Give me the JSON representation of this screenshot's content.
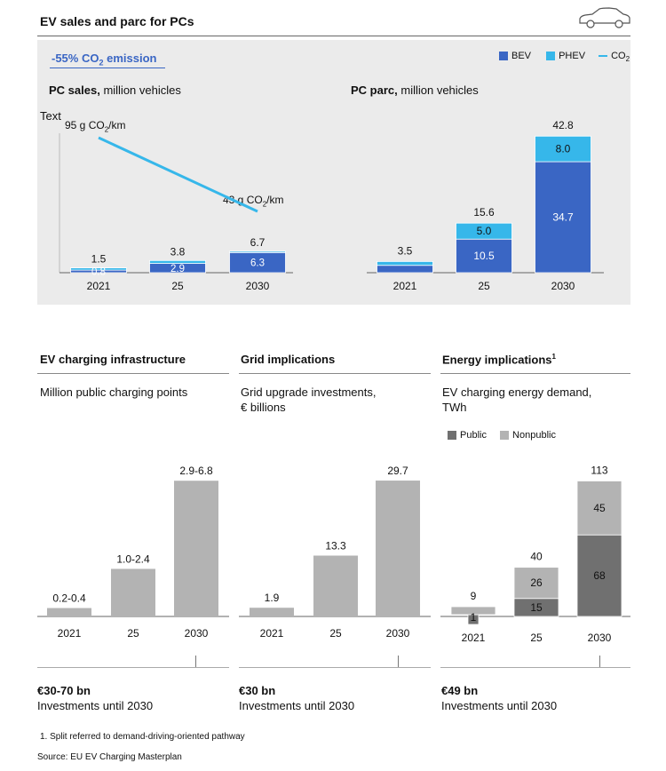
{
  "header": {
    "title": "EV sales and parc for PCs",
    "car_icon": "car-outline-icon"
  },
  "top": {
    "co2_badge_prefix": "-55% CO",
    "co2_badge_sub": "2",
    "co2_badge_suffix": " emission",
    "legend": [
      {
        "name": "BEV",
        "color": "#3a66c4",
        "kind": "square"
      },
      {
        "name": "PHEV",
        "color": "#36b7ea",
        "kind": "square"
      },
      {
        "name": "CO",
        "sub": "2",
        "color": "#36b7ea",
        "kind": "line"
      }
    ],
    "sales_title_bold": "PC sales,",
    "sales_title_rest": " million vehicles",
    "parc_title_bold": "PC parc,",
    "parc_title_rest": " million vehicles",
    "text_placeholder": "Text",
    "co2_start_prefix": "95 g CO",
    "co2_start_sub": "2",
    "co2_start_suffix": "/km",
    "co2_end_prefix": "43 g CO",
    "co2_end_sub": "2",
    "co2_end_suffix": "/km"
  },
  "bottom": {
    "charging": {
      "title": "EV charging infrastructure",
      "subtitle": "Million public charging points",
      "invest_value": "€30-70 bn",
      "invest_label": "Investments until 2030"
    },
    "grid": {
      "title": "Grid implications",
      "subtitle_1": "Grid upgrade investments,",
      "subtitle_2": "€ billions",
      "invest_value": "€30 bn",
      "invest_label": "Investments until 2030"
    },
    "energy": {
      "title": "Energy implications",
      "title_sup": "1",
      "subtitle_1": "EV charging energy demand,",
      "subtitle_2": "TWh",
      "legend": [
        {
          "name": "Public",
          "color": "#707070"
        },
        {
          "name": "Nonpublic",
          "color": "#b3b3b3"
        }
      ],
      "invest_value": "€49 bn",
      "invest_label": "Investments until 2030"
    }
  },
  "footnote": "1. Split referred to demand-driving-oriented pathway",
  "source": "Source: EU EV Charging Masterplan",
  "chart_data": [
    {
      "id": "pc_sales",
      "type": "bar",
      "stacked": true,
      "categories": [
        "2021",
        "25",
        "2030"
      ],
      "series": [
        {
          "name": "BEV",
          "values": [
            0.8,
            2.9,
            6.3
          ],
          "color": "#3a66c4"
        },
        {
          "name": "PHEV",
          "values": [
            0.7,
            0.9,
            0.4
          ],
          "color": "#36b7ea"
        }
      ],
      "totals": [
        1.5,
        3.8,
        6.7
      ],
      "bev_labels": [
        "0.8",
        "2.9",
        "6.3"
      ],
      "total_labels": [
        "1.5",
        "3.8",
        "6.7"
      ],
      "co2_line": {
        "values": [
          95,
          43
        ],
        "unit": "g CO2/km"
      }
    },
    {
      "id": "pc_parc",
      "type": "bar",
      "stacked": true,
      "categories": [
        "2021",
        "25",
        "2030"
      ],
      "series": [
        {
          "name": "BEV",
          "values": [
            2.3,
            10.5,
            34.7
          ],
          "color": "#3a66c4"
        },
        {
          "name": "PHEV",
          "values": [
            1.2,
            5.0,
            8.0
          ],
          "color": "#36b7ea"
        }
      ],
      "totals": [
        3.5,
        15.6,
        42.8
      ],
      "bev_labels": [
        "",
        "10.5",
        "34.7"
      ],
      "phev_labels": [
        "",
        "5.0",
        "8.0"
      ],
      "total_labels": [
        "3.5",
        "15.6",
        "42.8"
      ]
    },
    {
      "id": "charging_points",
      "type": "bar",
      "categories": [
        "2021",
        "25",
        "2030"
      ],
      "values": [
        0.3,
        1.7,
        4.85
      ],
      "labels": [
        "0.2-0.4",
        "1.0-2.4",
        "2.9-6.8"
      ]
    },
    {
      "id": "grid_investments",
      "type": "bar",
      "categories": [
        "2021",
        "25",
        "2030"
      ],
      "values": [
        1.9,
        13.3,
        29.7
      ],
      "labels": [
        "1.9",
        "13.3",
        "29.7"
      ]
    },
    {
      "id": "energy_demand",
      "type": "bar",
      "stacked": true,
      "categories": [
        "2021",
        "25",
        "2030"
      ],
      "series": [
        {
          "name": "Public",
          "values": [
            1,
            15,
            68
          ],
          "color": "#707070"
        },
        {
          "name": "Nonpublic",
          "values": [
            8,
            26,
            45
          ],
          "color": "#b3b3b3"
        }
      ],
      "totals": [
        9,
        40,
        113
      ],
      "public_labels": [
        "1",
        "15",
        "68"
      ],
      "nonpublic_labels": [
        "",
        "26",
        "45"
      ],
      "total_labels": [
        "9",
        "40",
        "113"
      ]
    }
  ]
}
